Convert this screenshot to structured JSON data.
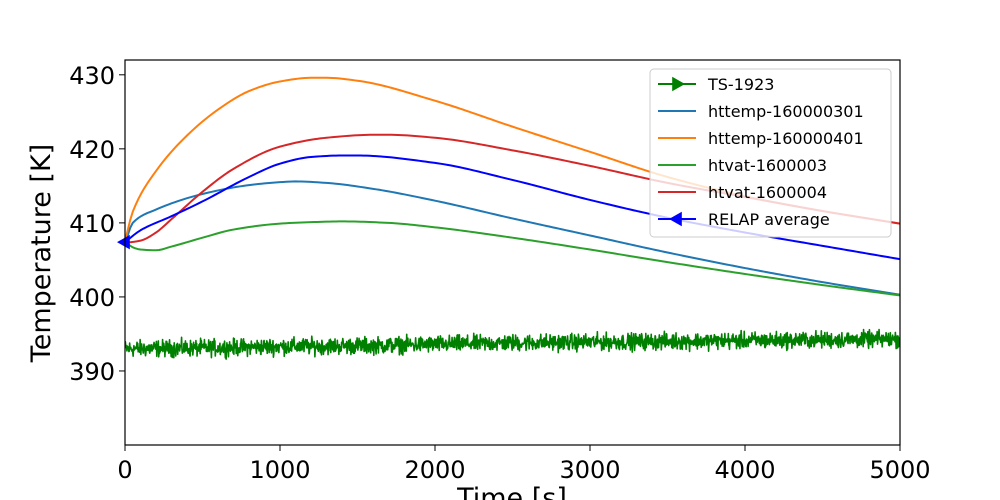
{
  "chart_data": {
    "type": "line",
    "xlabel": "Time [s]",
    "ylabel": "Temperature [K]",
    "xlim": [
      0,
      5000
    ],
    "ylim": [
      380,
      432
    ],
    "xticks": [
      0,
      1000,
      2000,
      3000,
      4000,
      5000
    ],
    "xtick_labels": [
      "0",
      "1000",
      "2000",
      "3000",
      "4000",
      "5000"
    ],
    "yticks": [
      390,
      400,
      410,
      420,
      430
    ],
    "ytick_labels": [
      "390",
      "400",
      "410",
      "420",
      "430"
    ],
    "grid": false,
    "legend_position": "top-right",
    "series": [
      {
        "name": "TS-1923",
        "color": "#008000",
        "marker": "triangle-right",
        "noisy": true,
        "x": [
          0,
          500,
          1000,
          1500,
          2000,
          2500,
          3000,
          3500,
          4000,
          4500,
          5000
        ],
        "y": [
          393.0,
          393.1,
          393.3,
          393.4,
          393.6,
          393.8,
          393.9,
          394.0,
          394.1,
          394.2,
          394.3
        ]
      },
      {
        "name": "httemp-160000301",
        "color": "#1f77b4",
        "x": [
          0,
          50,
          200,
          500,
          800,
          1000,
          1100,
          1300,
          1600,
          2000,
          2500,
          3000,
          3500,
          4000,
          4500,
          5000
        ],
        "y": [
          407.2,
          410.0,
          411.8,
          413.9,
          415.1,
          415.5,
          415.6,
          415.4,
          414.6,
          413.0,
          410.6,
          408.3,
          406.0,
          403.9,
          402.0,
          400.3
        ]
      },
      {
        "name": "httemp-160000401",
        "color": "#ff7f0e",
        "x": [
          0,
          50,
          200,
          400,
          600,
          800,
          1000,
          1200,
          1300,
          1500,
          2000,
          2500,
          3000,
          3500,
          4000,
          4500,
          5000
        ],
        "y": [
          407.5,
          411.5,
          417.0,
          421.8,
          425.3,
          427.8,
          429.1,
          429.6,
          429.6,
          429.2,
          426.5,
          423.0,
          419.6,
          416.2,
          413.6,
          411.6,
          409.9
        ]
      },
      {
        "name": "htvat-1600003",
        "color": "#2ca02c",
        "x": [
          0,
          50,
          100,
          200,
          300,
          500,
          700,
          1000,
          1200,
          1400,
          1700,
          2000,
          2500,
          3000,
          3500,
          4000,
          4500,
          5000
        ],
        "y": [
          407.5,
          406.7,
          406.4,
          406.3,
          406.8,
          408.0,
          409.1,
          409.9,
          410.1,
          410.2,
          410.0,
          409.4,
          408.0,
          406.4,
          404.7,
          403.1,
          401.6,
          400.2
        ]
      },
      {
        "name": "htvat-1600004",
        "color": "#d62728",
        "x": [
          0,
          100,
          200,
          300,
          500,
          700,
          1000,
          1300,
          1600,
          1700,
          2000,
          2500,
          3000,
          3500,
          4000,
          4500,
          5000
        ],
        "y": [
          407.3,
          407.6,
          408.7,
          410.5,
          414.2,
          417.3,
          420.3,
          421.5,
          421.9,
          421.9,
          421.5,
          419.8,
          417.7,
          415.4,
          413.5,
          411.6,
          409.9
        ]
      },
      {
        "name": "RELAP average",
        "color": "#0000ff",
        "marker": "triangle-left",
        "x": [
          0,
          100,
          300,
          500,
          800,
          1000,
          1200,
          1400,
          1500,
          2000,
          2500,
          3000,
          3500,
          4000,
          4500,
          5000
        ],
        "y": [
          407.4,
          409.0,
          410.9,
          412.9,
          416.2,
          418.0,
          418.9,
          419.1,
          419.1,
          418.1,
          415.8,
          413.1,
          410.7,
          408.7,
          406.9,
          405.1
        ]
      }
    ]
  }
}
